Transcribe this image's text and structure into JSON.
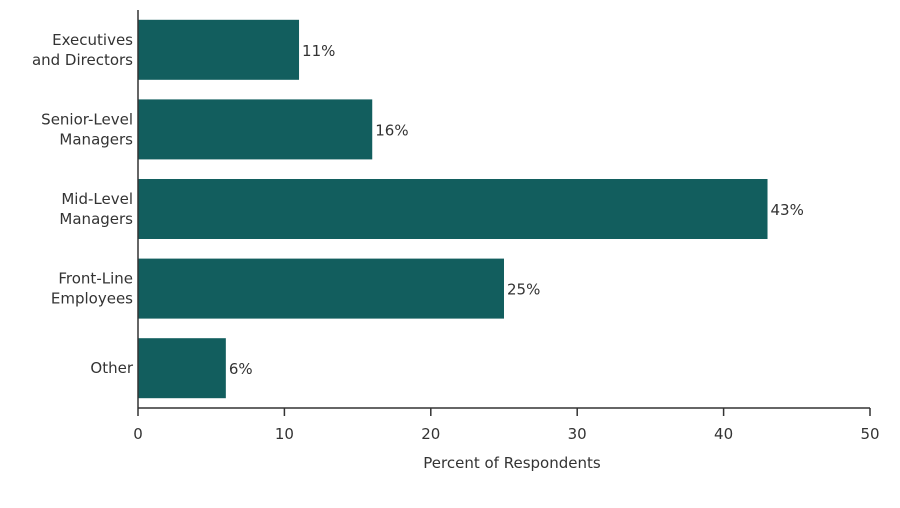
{
  "chart_data": {
    "type": "bar",
    "orientation": "horizontal",
    "categories": [
      [
        "Executives",
        "and Directors"
      ],
      [
        "Senior-Level",
        "Managers"
      ],
      [
        "Mid-Level",
        "Managers"
      ],
      [
        "Front-Line",
        "Employees"
      ],
      [
        "Other"
      ]
    ],
    "values": [
      11,
      16,
      43,
      25,
      6
    ],
    "value_labels": [
      "11%",
      "16%",
      "43%",
      "25%",
      "6%"
    ],
    "xlabel": "Percent of Respondents",
    "ylabel": "",
    "title": "",
    "xlim": [
      0,
      50
    ],
    "xticks": [
      0,
      10,
      20,
      30,
      40,
      50
    ],
    "grid": false,
    "bar_color": "#125e5e",
    "axis_color": "#333333"
  }
}
